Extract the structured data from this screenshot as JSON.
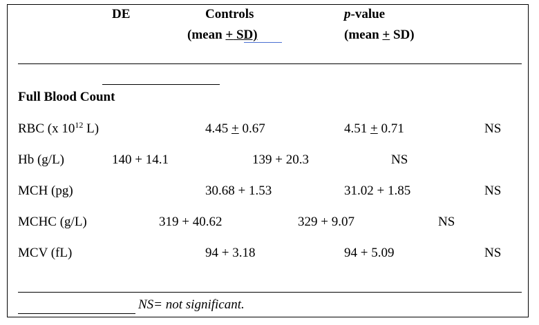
{
  "header": {
    "col1": "DE",
    "col2_line1": "Controls",
    "col2_line2_pre": "(mean ",
    "col2_pm": "+",
    "col2_line2_sd": " SD)",
    "col3_italic": "p",
    "col3_rest": "-value",
    "col3_line2_pre": "(mean ",
    "col3_pm": "+",
    "col3_line2_post": " SD)"
  },
  "section": {
    "title": "Full Blood Count"
  },
  "rows": {
    "rbc": {
      "label_pre": "RBC (x 10",
      "label_sup": "12",
      "label_post": " L)",
      "v1_mean": "4.45 ",
      "v1_pm": "+",
      "v1_sd": " 0.67",
      "v2_mean": "4.51 ",
      "v2_pm": "+",
      "v2_sd": " 0.71",
      "sig": "NS"
    },
    "hb": {
      "label": "Hb (g/L)",
      "v1": "140 + 14.1",
      "v2": "139 + 20.3",
      "sig": "NS"
    },
    "mch": {
      "label": "MCH (pg)",
      "v1": "30.68 + 1.53",
      "v2": "31.02 + 1.85",
      "sig": "NS"
    },
    "mchc": {
      "label": "MCHC (g/L)",
      "v1": "319 + 40.62",
      "v2": "329 + 9.07",
      "sig": "NS"
    },
    "mcv": {
      "label": "MCV (fL)",
      "v1": "94 + 3.18",
      "v2": "94 + 5.09",
      "sig": "NS"
    }
  },
  "footnote": {
    "text": "NS= not significant."
  }
}
